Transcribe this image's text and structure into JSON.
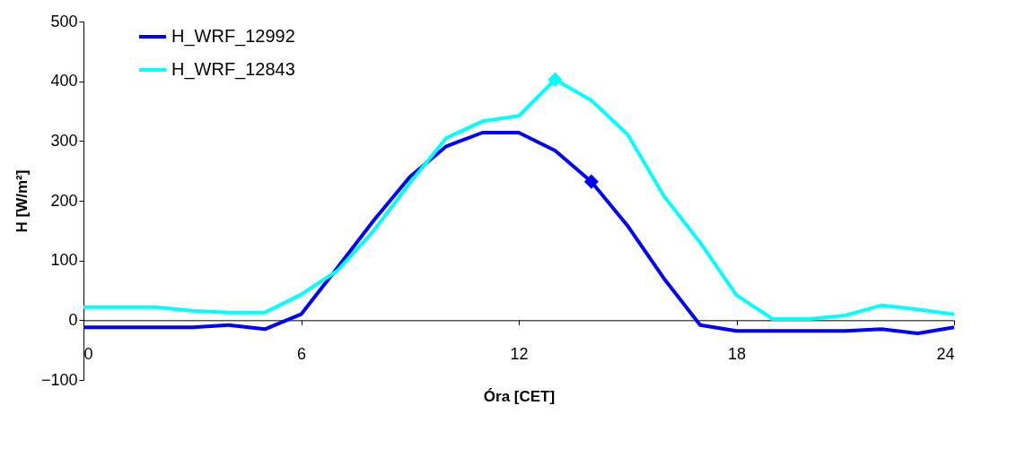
{
  "chart_data": {
    "type": "line",
    "xlabel": "Óra [CET]",
    "ylabel": "H [W/m²]",
    "x": [
      0,
      1,
      2,
      3,
      4,
      5,
      6,
      7,
      8,
      9,
      10,
      11,
      12,
      13,
      14,
      15,
      16,
      17,
      18,
      19,
      20,
      21,
      22,
      23,
      24
    ],
    "series": [
      {
        "name": "H_WRF_12992",
        "color": "#0000ff",
        "values": [
          -12,
          -12,
          -12,
          -12,
          -8,
          -15,
          10,
          88,
          167,
          240,
          291,
          314,
          314,
          284,
          232,
          158,
          70,
          -8,
          -18,
          -18,
          -18,
          -18,
          -15,
          -22,
          -12
        ]
      },
      {
        "name": "H_WRF_12843",
        "color": "#00ffff",
        "values": [
          22,
          22,
          22,
          16,
          13,
          13,
          43,
          83,
          150,
          230,
          305,
          333,
          342,
          403,
          368,
          311,
          208,
          130,
          42,
          2,
          2,
          8,
          25,
          18,
          10
        ]
      },
      {
        "type": "scatter",
        "marker": "diamond",
        "color": "#0000ff",
        "x": [
          14
        ],
        "values": [
          232
        ]
      },
      {
        "type": "scatter",
        "marker": "diamond",
        "color": "#00ffff",
        "x": [
          13
        ],
        "values": [
          403
        ]
      }
    ],
    "xlim": [
      0,
      24
    ],
    "xticks": [
      0,
      6,
      12,
      18,
      24
    ],
    "ylim": [
      -100,
      500
    ],
    "yticks": [
      -100,
      0,
      100,
      200,
      300,
      400,
      500
    ],
    "grid": false,
    "legend": "top left",
    "marker": "none",
    "line_style": "solid"
  }
}
